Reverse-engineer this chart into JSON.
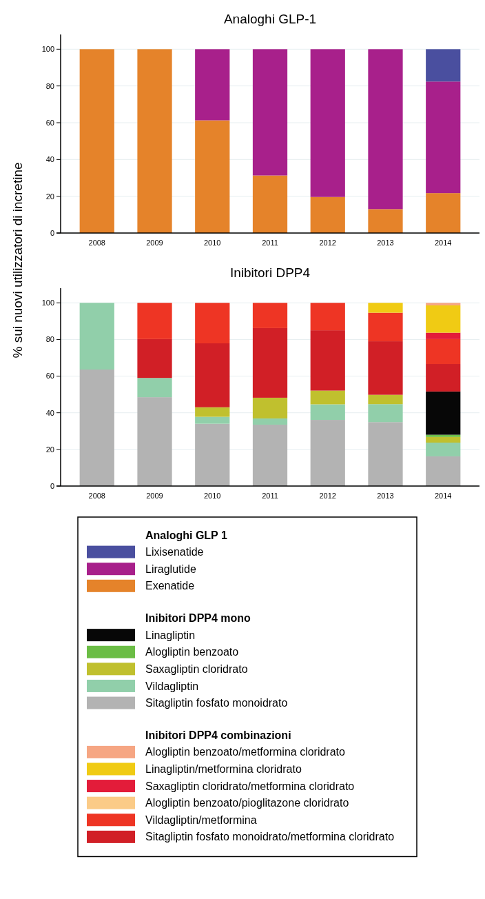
{
  "chart_data": [
    {
      "type": "bar",
      "title": "Analoghi GLP-1",
      "ylabel": "% sui nuovi utilizzatori di incretine",
      "categories": [
        "2008",
        "2009",
        "2010",
        "2011",
        "2012",
        "2013",
        "2014"
      ],
      "stacked": true,
      "ylim": [
        0,
        108
      ],
      "yticks": [
        0,
        20,
        40,
        60,
        80,
        100
      ],
      "grid": "y",
      "legend": "bottom",
      "legend_title": "Analoghi GLP 1",
      "series": [
        {
          "name": "Exenatide",
          "color": "#e5832a",
          "values": [
            100,
            100,
            61.3,
            31.3,
            19.6,
            13,
            21.7
          ]
        },
        {
          "name": "Liraglutide",
          "color": "#a8208b",
          "values": [
            null,
            null,
            38.7,
            68.7,
            80.4,
            87,
            60.7
          ]
        },
        {
          "name": "Lixisenatide",
          "color": "#4a4f9f",
          "values": [
            null,
            null,
            null,
            null,
            null,
            null,
            17.6
          ]
        }
      ]
    },
    {
      "type": "bar",
      "title": "Inibitori DPP4",
      "categories": [
        "2008",
        "2009",
        "2010",
        "2011",
        "2012",
        "2013",
        "2014"
      ],
      "stacked": true,
      "ylim": [
        0,
        108
      ],
      "yticks": [
        0,
        20,
        40,
        60,
        80,
        100
      ],
      "grid": "y",
      "legend": "bottom",
      "legend_title": "Inibitori DPP4 mono",
      "annotations": [
        "Inibitori DPP4 combinazioni"
      ],
      "series": [
        {
          "name": "Sitagliptin fosfato monoidrato",
          "color": "#b3b3b3",
          "values": [
            63.6,
            48.5,
            34,
            33.5,
            36.1,
            34.9,
            16.2
          ]
        },
        {
          "name": "Vildagliptin",
          "color": "#91cfaa",
          "values": [
            36.4,
            10.5,
            3.8,
            3.4,
            8.5,
            9.8,
            7.5
          ]
        },
        {
          "name": "Saxagliptin cloridrato",
          "color": "#c0c02e",
          "values": [
            null,
            null,
            5.2,
            11.3,
            7.5,
            5.1,
            3.1
          ]
        },
        {
          "name": "Alogliptin benzoato",
          "color": "#6bbd45",
          "values": [
            null,
            null,
            null,
            null,
            null,
            null,
            1.2
          ]
        },
        {
          "name": "Linagliptin",
          "color": "#070707",
          "values": [
            null,
            null,
            null,
            null,
            null,
            null,
            23.6
          ]
        },
        {
          "name": "Sitagliptin fosfato monoidrato/metformina cloridrato",
          "color": "#d11f26",
          "values": [
            null,
            21.2,
            34.9,
            38,
            32.9,
            29.2,
            15
          ]
        },
        {
          "name": "Vildagliptin/metformina",
          "color": "#ee3524",
          "values": [
            null,
            19.8,
            22.1,
            13.8,
            15,
            15.6,
            13.6
          ]
        },
        {
          "name": "Alogliptin benzoato/pioglitazone cloridrato",
          "color": "#fbcb87",
          "values": [
            null,
            null,
            null,
            null,
            null,
            null,
            null
          ]
        },
        {
          "name": "Saxagliptin cloridrato/metformina cloridrato",
          "color": "#e31c3a",
          "values": [
            null,
            null,
            null,
            null,
            null,
            null,
            3.5
          ]
        },
        {
          "name": "Linagliptin/metformina cloridrato",
          "color": "#f0cb14",
          "values": [
            null,
            null,
            null,
            null,
            null,
            5.4,
            14.9
          ]
        },
        {
          "name": "Alogliptin benzoato/metformina cloridrato",
          "color": "#f6a683",
          "values": [
            null,
            null,
            null,
            null,
            null,
            null,
            1.4
          ]
        }
      ]
    }
  ]
}
